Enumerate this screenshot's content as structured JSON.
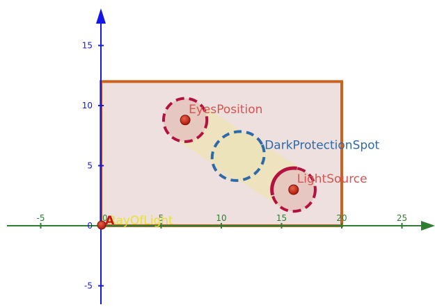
{
  "colors": {
    "x_axis": "#2e7d32",
    "y_axis": "#1515e6",
    "x_tick_label": "#2e7d32",
    "y_tick_label": "#1515e6",
    "room_stroke": "#c8621e",
    "room_fill": "#ede0de",
    "beam_fill": "#ede3b8",
    "eyes_stroke": "#b3123f",
    "eyes_fill": "#e4c4bf",
    "dark_stroke": "#2f6aa8",
    "light_stroke": "#b3123f",
    "light_fill": "#e4c4bf",
    "point_fill": "#cc2b1a",
    "eyes_label": "#d9534f",
    "light_label": "#d9534f",
    "dark_label": "#2f6aa8",
    "ray_label": "#e6e03a",
    "origin_label": "#cc1111"
  },
  "x_ticks": [
    {
      "value": -5,
      "label": "-5"
    },
    {
      "value": 0,
      "label": "0"
    },
    {
      "value": 5,
      "label": "5"
    },
    {
      "value": 10,
      "label": "10"
    },
    {
      "value": 15,
      "label": "15"
    },
    {
      "value": 20,
      "label": "20"
    },
    {
      "value": 25,
      "label": "25"
    }
  ],
  "y_ticks": [
    {
      "value": -5,
      "label": "-5"
    },
    {
      "value": 0,
      "label": "0"
    },
    {
      "value": 5,
      "label": "5"
    },
    {
      "value": 10,
      "label": "10"
    },
    {
      "value": 15,
      "label": "15"
    }
  ],
  "room": {
    "x_min": 0,
    "x_max": 20,
    "y_min": 0,
    "y_max": 12
  },
  "eyes_position": {
    "x": 7,
    "y": 8.8,
    "radius": 1.8,
    "label": "EyesPosition"
  },
  "light_source": {
    "x": 16,
    "y": 3,
    "radius": 1.8,
    "label": "LightSource"
  },
  "dark_protection_spot": {
    "x": 11.4,
    "y": 5.8,
    "rx": 2.2,
    "ry": 2.0,
    "label": "DarkProtectionSpot"
  },
  "ray_of_light": {
    "label": "RayOfLight"
  },
  "origin_point": {
    "label": "A"
  }
}
